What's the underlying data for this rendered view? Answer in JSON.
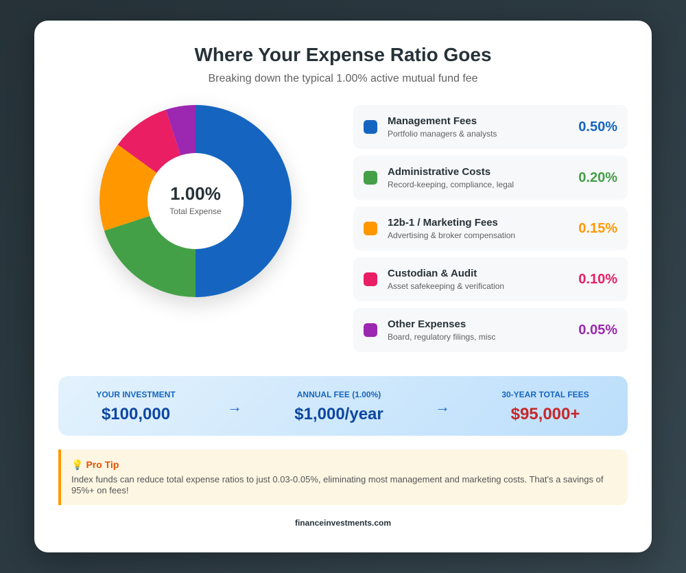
{
  "header": {
    "title": "Where Your Expense Ratio Goes",
    "subtitle": "Breaking down the typical 1.00% active mutual fund fee"
  },
  "donut": {
    "center_value": "1.00%",
    "center_label": "Total Expense"
  },
  "legend": [
    {
      "name": "Management Fees",
      "desc": "Portfolio managers & analysts",
      "value": "0.50%",
      "color": "#1565c0"
    },
    {
      "name": "Administrative Costs",
      "desc": "Record-keeping, compliance, legal",
      "value": "0.20%",
      "color": "#43a047"
    },
    {
      "name": "12b-1 / Marketing Fees",
      "desc": "Advertising & broker compensation",
      "value": "0.15%",
      "color": "#ff9800"
    },
    {
      "name": "Custodian & Audit",
      "desc": "Asset safekeeping & verification",
      "value": "0.10%",
      "color": "#e91e63"
    },
    {
      "name": "Other Expenses",
      "desc": "Board, regulatory filings, misc",
      "value": "0.05%",
      "color": "#9c27b0"
    }
  ],
  "calculation": {
    "investment_label": "YOUR INVESTMENT",
    "investment_value": "$100,000",
    "annual_label": "ANNUAL FEE (1.00%)",
    "annual_value": "$1,000/year",
    "total_label": "30-YEAR TOTAL FEES",
    "total_value": "$95,000+",
    "arrow": "→"
  },
  "tip": {
    "icon": "💡",
    "title": "Pro Tip",
    "text": "Index funds can reduce total expense ratios to just 0.03-0.05%, eliminating most management and marketing costs. That's a savings of 95%+ on fees!"
  },
  "footer": {
    "site": "financeinvestments.com"
  },
  "chart_data": {
    "type": "pie",
    "variant": "donut",
    "title": "Where Your Expense Ratio Goes",
    "subtitle": "Breaking down the typical 1.00% active mutual fund fee",
    "categories": [
      "Management Fees",
      "Administrative Costs",
      "12b-1 / Marketing Fees",
      "Custodian & Audit",
      "Other Expenses"
    ],
    "values": [
      0.5,
      0.2,
      0.15,
      0.1,
      0.05
    ],
    "unit": "%",
    "colors": [
      "#1565c0",
      "#43a047",
      "#ff9800",
      "#e91e63",
      "#9c27b0"
    ],
    "center_text": "1.00% Total Expense",
    "start_angle": "top, clockwise",
    "legend_position": "right"
  }
}
